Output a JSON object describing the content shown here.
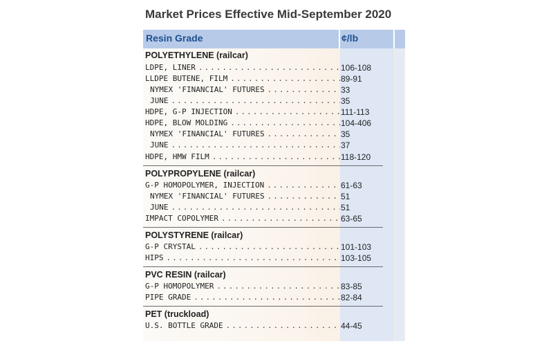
{
  "title": "Market Prices Effective Mid-September 2020",
  "header": {
    "grade_label": "Resin Grade",
    "unit_label": "¢/lb"
  },
  "sections": {
    "polyethylene": {
      "title": "POLYETHYLENE (railcar)",
      "rows": [
        {
          "name": "LDPE, LINER",
          "value": "106-108"
        },
        {
          "name": "LLDPE BUTENE, FILM",
          "value": "89-91"
        },
        {
          "name": "NYMEX 'FINANCIAL' FUTURES",
          "value": "33"
        },
        {
          "name": "JUNE",
          "value": "35"
        },
        {
          "name": "HDPE, G-P INJECTION",
          "value": "111-113"
        },
        {
          "name": "HDPE, BLOW MOLDING",
          "value": "104-406"
        },
        {
          "name": "NYMEX 'FINANCIAL' FUTURES",
          "value": "35"
        },
        {
          "name": "JUNE",
          "value": "37"
        },
        {
          "name": "HDPE, HMW FILM",
          "value": "118-120"
        }
      ]
    },
    "polypropylene": {
      "title": "POLYPROPYLENE (railcar)",
      "rows": [
        {
          "name": "G-P HOMOPOLYMER, INJECTION",
          "value": "61-63"
        },
        {
          "name": "NYMEX 'FINANCIAL' FUTURES",
          "value": "51"
        },
        {
          "name": "JUNE",
          "value": "51"
        },
        {
          "name": "IMPACT COPOLYMER",
          "value": "63-65"
        }
      ]
    },
    "polystyrene": {
      "title": "POLYSTYRENE (railcar)",
      "rows": [
        {
          "name": "G-P CRYSTAL",
          "value": "101-103"
        },
        {
          "name": "HIPS",
          "value": "103-105"
        }
      ]
    },
    "pvc": {
      "title": "PVC RESIN (railcar)",
      "rows": [
        {
          "name": "G-P HOMOPOLYMER",
          "value": "83-85"
        },
        {
          "name": "PIPE GRADE",
          "value": "82-84"
        }
      ]
    },
    "pet": {
      "title": "PET (truckload)",
      "rows": [
        {
          "name": "U.S. BOTTLE GRADE",
          "value": "44-45"
        }
      ]
    }
  }
}
